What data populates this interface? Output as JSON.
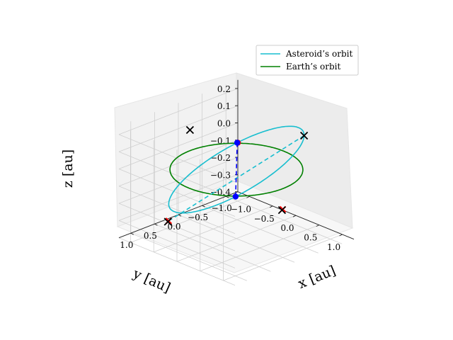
{
  "chart_data": {
    "type": "line",
    "xlabel": "x [au]",
    "ylabel": "y [au]",
    "zlabel": "z [au]",
    "xticks": [
      "−1.0",
      "−0.5",
      "0.0",
      "0.5",
      "1.0"
    ],
    "yticks": [
      "1.0",
      "0.5",
      "0.0",
      "−0.5",
      "−1.0"
    ],
    "zticks": [
      "0.2",
      "0.1",
      "0.0",
      "−0.1",
      "−0.2",
      "−0.3",
      "−0.4"
    ],
    "xlim": [
      -1.25,
      1.25
    ],
    "ylim": [
      -1.25,
      1.25
    ],
    "zlim": [
      -0.4,
      0.25
    ],
    "grid": true,
    "legend_position": "upper right",
    "series": [
      {
        "name": "Asteroid’s orbit",
        "color": "#17becf",
        "type": "ellipse-3d",
        "semi_major_axis": 1.0,
        "eccentricity": 0.03,
        "inclination_deg": 12,
        "ascending_node_deg": 45
      },
      {
        "name": "Earth’s orbit",
        "color": "#008000",
        "type": "circle-3d",
        "radius": 1.0,
        "z": 0.0
      }
    ],
    "annotations": {
      "node_line": {
        "color": "#0000ff",
        "style": "dashed",
        "from": [
          -0.72,
          -0.72,
          0.0
        ],
        "to": [
          0.72,
          0.72,
          0.0
        ]
      },
      "apsis_line": {
        "color": "#17becf",
        "style": "dashed",
        "from": [
          -0.72,
          0.72,
          -0.3
        ],
        "to": [
          0.72,
          -0.72,
          0.2
        ]
      },
      "blue_points": [
        [
          -0.72,
          -0.72,
          0.0
        ],
        [
          0.72,
          0.72,
          0.0
        ]
      ],
      "black_x_markers": [
        [
          -0.72,
          0.72,
          -0.3
        ],
        [
          0.72,
          -0.72,
          0.2
        ],
        [
          -1.0,
          0.0,
          0.12
        ],
        [
          1.0,
          0.0,
          -0.12
        ]
      ],
      "red_x_markers": [
        [
          -0.72,
          0.72,
          -0.3
        ],
        [
          1.0,
          0.0,
          -0.12
        ]
      ]
    }
  }
}
